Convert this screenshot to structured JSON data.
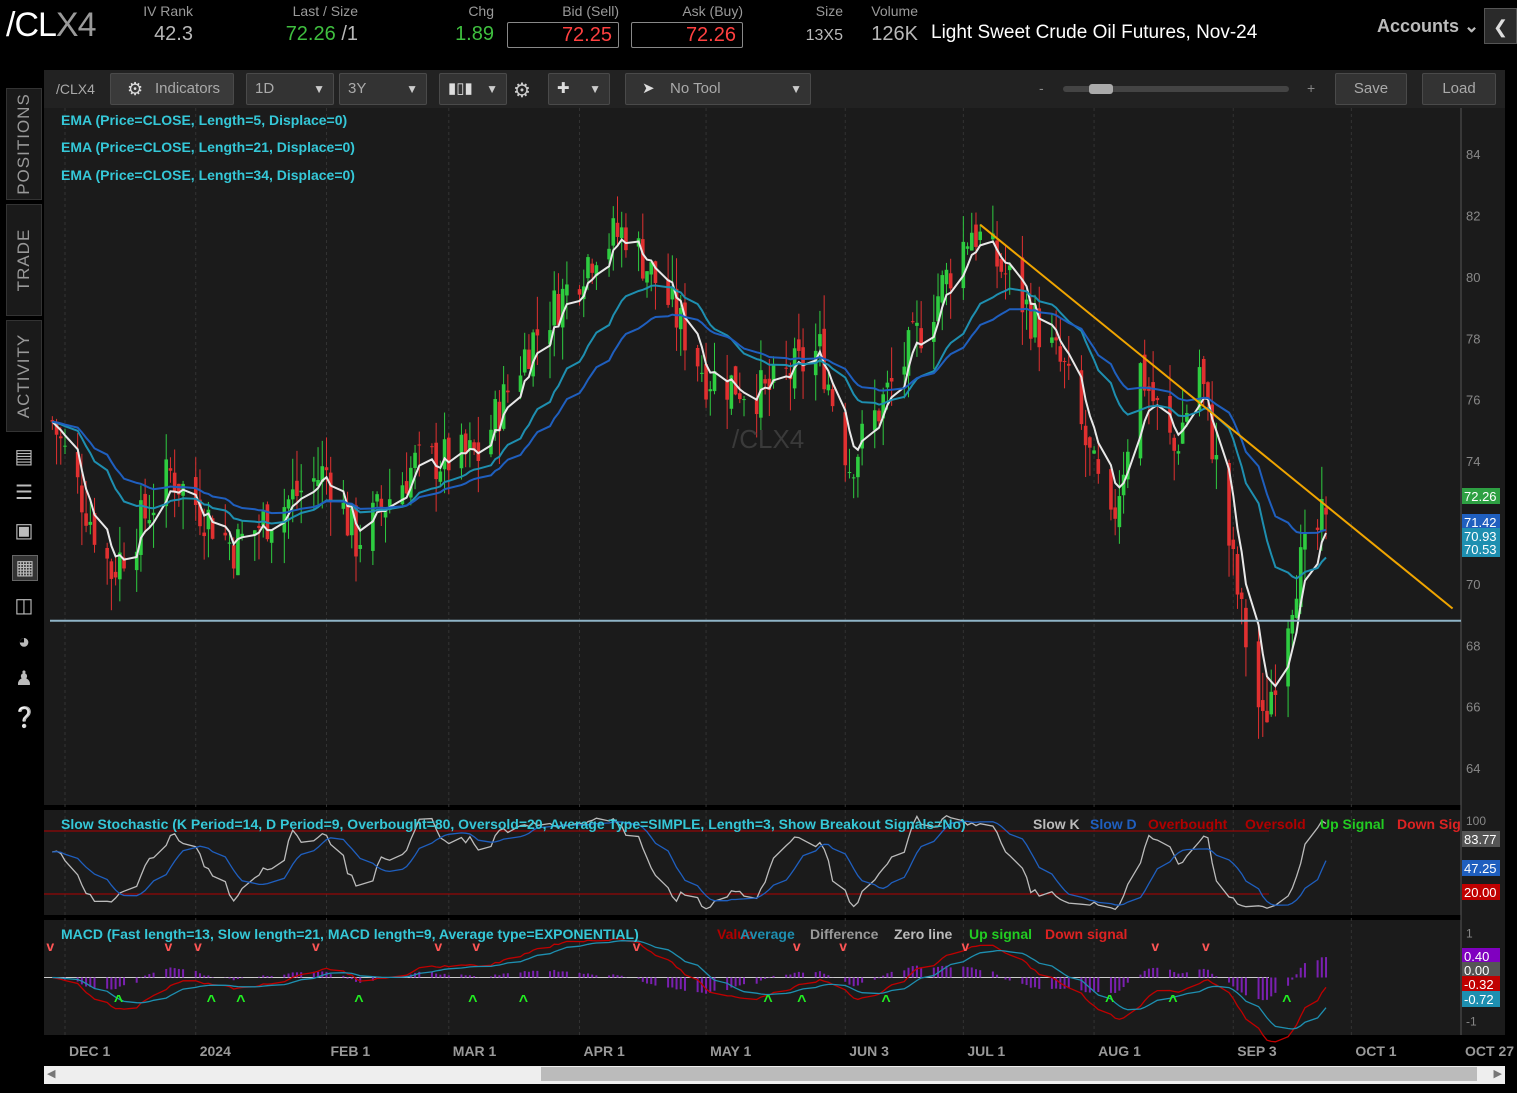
{
  "header": {
    "symbol_main": "/CL",
    "symbol_suffix": "X4",
    "iv_rank_label": "IV Rank",
    "iv_rank": "42.3",
    "last_label": "Last / Size",
    "last": "72.26",
    "last_size": "/1",
    "chg_label": "Chg",
    "chg": "1.89",
    "bid_label": "Bid (Sell)",
    "bid": "72.25",
    "ask_label": "Ask (Buy)",
    "ask": "72.26",
    "size_label": "Size",
    "size": "13X5",
    "volume_label": "Volume",
    "volume": "126K",
    "description": "Light Sweet Crude Oil Futures, Nov-24",
    "accounts_label": "Accounts"
  },
  "sidebar": {
    "tabs": [
      "POSITIONS",
      "TRADE",
      "ACTIVITY"
    ],
    "icons": [
      "monitor-icon",
      "list-icon",
      "tv-icon",
      "chart-icon",
      "grid-icon",
      "gauge-icon",
      "people-icon",
      "help-icon"
    ]
  },
  "toolbar": {
    "symbol": "/CLX4",
    "indicators_label": "Indicators",
    "interval": "1D",
    "range": "3Y",
    "tool": "No Tool",
    "zoom_minus": "-",
    "zoom_plus": "+",
    "save_label": "Save",
    "load_label": "Load"
  },
  "studies": {
    "ema5": "EMA (Price=CLOSE, Length=5, Displace=0)",
    "ema21": "EMA (Price=CLOSE, Length=21, Displace=0)",
    "ema34": "EMA (Price=CLOSE, Length=34, Displace=0)",
    "stoch": "Slow Stochastic (K Period=14, D Period=9, Overbought=80, Oversold=20, Average Type=SIMPLE, Length=3, Show Breakout Signals=No)",
    "stoch_legend": [
      "Slow K",
      "Slow D",
      "Overbought",
      "Oversold",
      "Up Signal",
      "Down Sig"
    ],
    "macd": "MACD (Fast length=13, Slow length=21, MACD length=9, Average type=EXPONENTIAL)",
    "macd_legend": [
      "Value",
      "Average",
      "Difference",
      "Zero line",
      "Up signal",
      "Down signal"
    ]
  },
  "watermark": "/CLX4",
  "colors": {
    "up": "#2ecc40",
    "down": "#e03030",
    "ema5": "#e8e8e8",
    "ema21": "#1e8fb0",
    "ema34": "#1f5fbf",
    "trendline": "#f0a500",
    "support": "#8fb4c8"
  },
  "chart_data": {
    "type": "candlestick",
    "main": {
      "y_ticks": [
        64,
        66,
        68,
        70,
        72,
        74,
        76,
        78,
        80,
        82,
        84
      ],
      "ylim": [
        62.8,
        85.5
      ],
      "price_tags": [
        {
          "label": "72.26",
          "value": 72.26,
          "color": "#2ea043"
        },
        {
          "label": "71.42",
          "value": 71.42,
          "color": "#1f5fbf"
        },
        {
          "label": "70.93",
          "value": 70.93,
          "color": "#1e8fb0"
        },
        {
          "label": "70.53",
          "value": 70.53,
          "color": "#1e8fb0"
        }
      ],
      "x_labels": [
        "DEC 1",
        "2024",
        "FEB 1",
        "MAR 1",
        "APR 1",
        "MAY 1",
        "JUN 3",
        "JUL 1",
        "AUG 1",
        "SEP 3",
        "OCT 1",
        "OCT 27"
      ],
      "trendline": {
        "start": {
          "date": "2024-07-05",
          "price": 81.7
        },
        "end": {
          "date": "2024-10-25",
          "price": 69.2
        }
      },
      "support_level": 68.8,
      "closes_key": [
        {
          "date": "2023-11-28",
          "close": 75.3
        },
        {
          "date": "2023-12-12",
          "close": 70.4
        },
        {
          "date": "2023-12-26",
          "close": 73.6
        },
        {
          "date": "2024-01-10",
          "close": 71.2
        },
        {
          "date": "2024-01-22",
          "close": 72.6
        },
        {
          "date": "2024-02-01",
          "close": 73.7
        },
        {
          "date": "2024-02-08",
          "close": 71.4
        },
        {
          "date": "2024-02-22",
          "close": 73.9
        },
        {
          "date": "2024-03-08",
          "close": 74.2
        },
        {
          "date": "2024-03-20",
          "close": 77.8
        },
        {
          "date": "2024-04-05",
          "close": 81.0
        },
        {
          "date": "2024-04-12",
          "close": 81.5
        },
        {
          "date": "2024-04-22",
          "close": 79.2
        },
        {
          "date": "2024-05-01",
          "close": 76.8
        },
        {
          "date": "2024-05-15",
          "close": 76.2
        },
        {
          "date": "2024-05-28",
          "close": 77.6
        },
        {
          "date": "2024-06-04",
          "close": 73.9
        },
        {
          "date": "2024-06-18",
          "close": 77.5
        },
        {
          "date": "2024-07-03",
          "close": 81.6
        },
        {
          "date": "2024-07-12",
          "close": 79.9
        },
        {
          "date": "2024-07-25",
          "close": 76.9
        },
        {
          "date": "2024-08-05",
          "close": 71.7
        },
        {
          "date": "2024-08-12",
          "close": 77.0
        },
        {
          "date": "2024-08-20",
          "close": 74.3
        },
        {
          "date": "2024-08-26",
          "close": 77.1
        },
        {
          "date": "2024-09-05",
          "close": 68.9
        },
        {
          "date": "2024-09-10",
          "close": 65.3
        },
        {
          "date": "2024-09-18",
          "close": 70.3
        },
        {
          "date": "2024-09-25",
          "close": 72.26
        }
      ]
    },
    "stochastic": {
      "ylim": [
        0,
        100
      ],
      "y_ticks": [
        100
      ],
      "overbought": 80,
      "oversold": 20,
      "tags": [
        {
          "label": "83.77",
          "value": 83.77,
          "color": "#555555"
        },
        {
          "label": "47.25",
          "value": 47.25,
          "color": "#1f5fbf"
        },
        {
          "label": "20.00",
          "value": 20.0,
          "color": "#c00000"
        }
      ]
    },
    "macd": {
      "ylim": [
        -1.3,
        1.3
      ],
      "y_ticks": [
        1,
        -1
      ],
      "tags": [
        {
          "label": "0.40",
          "value": 0.4,
          "color": "#8000c0"
        },
        {
          "label": "0.00",
          "value": 0.0,
          "color": "#555555"
        },
        {
          "label": "-0.32",
          "value": -0.32,
          "color": "#c00000"
        },
        {
          "label": "-0.72",
          "value": -0.72,
          "color": "#1e8fb0"
        }
      ],
      "down_signals": [
        "2023-11-28",
        "2023-12-26",
        "2024-01-02",
        "2024-01-30",
        "2024-02-28",
        "2024-03-08",
        "2024-04-15",
        "2024-05-23",
        "2024-06-03",
        "2024-07-02",
        "2024-08-16",
        "2024-08-28"
      ],
      "up_signals": [
        "2023-12-14",
        "2024-01-05",
        "2024-01-12",
        "2024-02-09",
        "2024-03-07",
        "2024-03-19",
        "2024-05-16",
        "2024-05-24",
        "2024-06-13",
        "2024-08-05",
        "2024-08-20",
        "2024-09-16"
      ]
    }
  }
}
